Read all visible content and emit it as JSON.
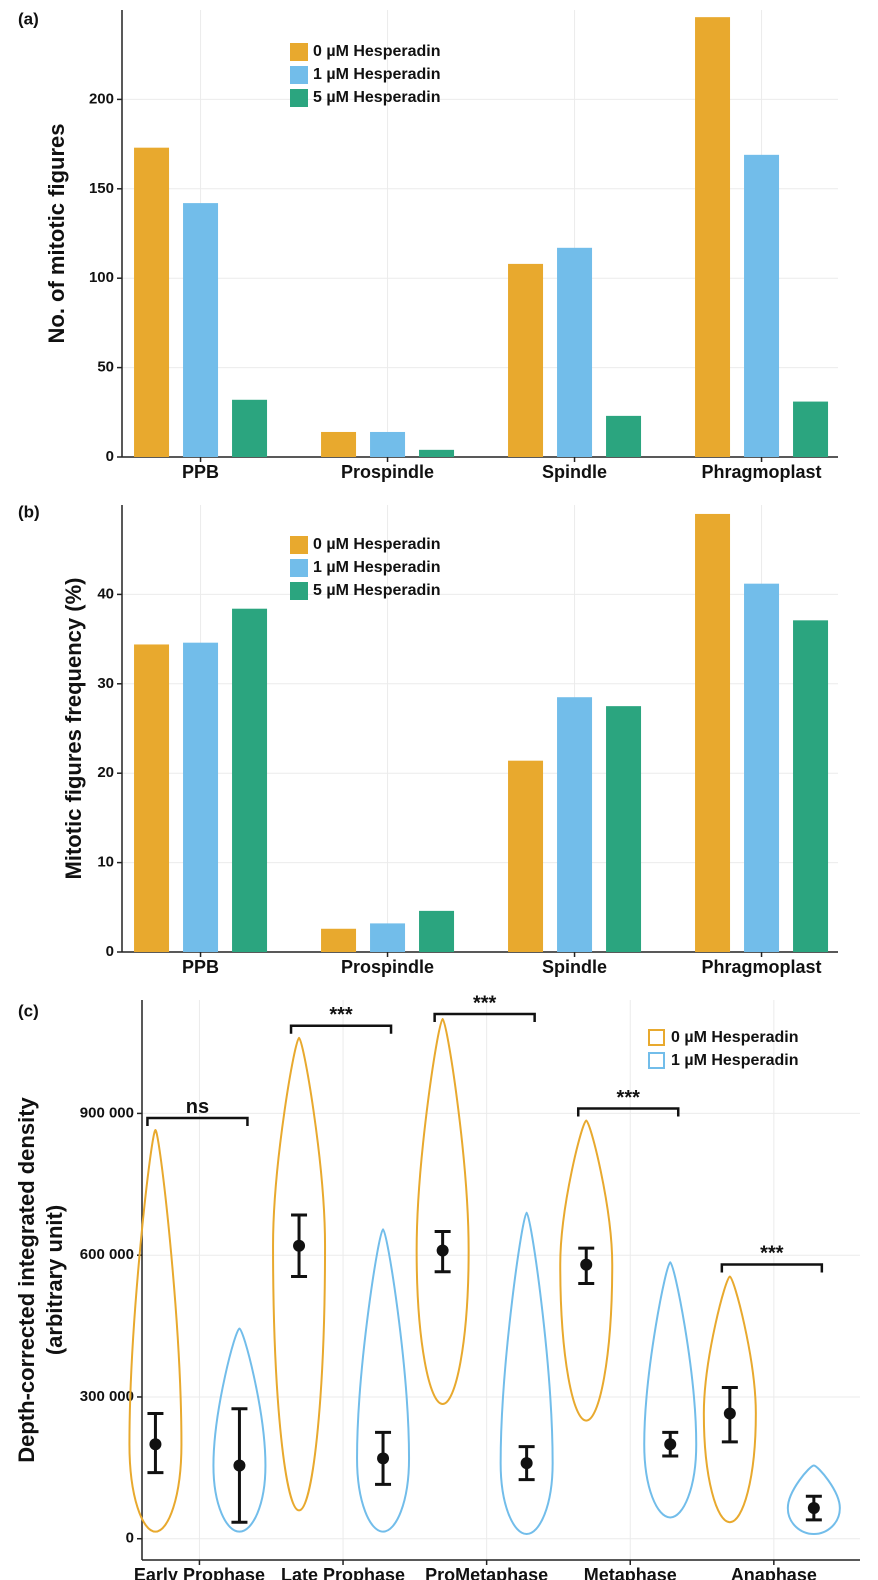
{
  "chart_data": [
    {
      "type": "bar",
      "panel_label": "(a)",
      "ylabel": "No. of mitotic figures",
      "categories": [
        "PPB",
        "Prospindle",
        "Spindle",
        "Phragmoplast"
      ],
      "series": [
        {
          "name": "0 µM Hesperadin",
          "color": "#E8A92E",
          "values": [
            173,
            14,
            108,
            246
          ]
        },
        {
          "name": "1 µM Hesperadin",
          "color": "#72BDEA",
          "values": [
            142,
            14,
            117,
            169
          ]
        },
        {
          "name": "5 µM Hesperadin",
          "color": "#2BA57F",
          "values": [
            32,
            4,
            23,
            31
          ]
        }
      ],
      "ylim": [
        0,
        250
      ],
      "yticks": [
        0,
        50,
        100,
        150,
        200
      ],
      "grid": true,
      "legend": "top-left"
    },
    {
      "type": "bar",
      "panel_label": "(b)",
      "ylabel": "Mitotic figures frequency (%)",
      "categories": [
        "PPB",
        "Prospindle",
        "Spindle",
        "Phragmoplast"
      ],
      "series": [
        {
          "name": "0 µM Hesperadin",
          "color": "#E8A92E",
          "values": [
            34.4,
            2.6,
            21.4,
            49
          ]
        },
        {
          "name": "1 µM Hesperadin",
          "color": "#72BDEA",
          "values": [
            34.6,
            3.2,
            28.5,
            41.2
          ]
        },
        {
          "name": "5 µM Hesperadin",
          "color": "#2BA57F",
          "values": [
            38.4,
            4.6,
            27.5,
            37.1
          ]
        }
      ],
      "ylim": [
        0,
        50
      ],
      "yticks": [
        0,
        10,
        20,
        30,
        40
      ],
      "grid": true,
      "legend": "top-left"
    },
    {
      "type": "violin",
      "panel_label": "(c)",
      "ylabel": "Depth-corrected integrated density",
      "ylabel2": "(arbitrary unit)",
      "categories": [
        "Early Prophase",
        "Late Prophase",
        "ProMetaphase",
        "Metaphase",
        "Anaphase"
      ],
      "series": [
        {
          "name": "0 µM Hesperadin",
          "color": "#E8A92E",
          "mean": [
            200000,
            620000,
            610000,
            580000,
            265000
          ],
          "ci_low": [
            140000,
            555000,
            565000,
            540000,
            205000
          ],
          "ci_high": [
            265000,
            685000,
            650000,
            615000,
            320000
          ],
          "min": [
            15000,
            60000,
            285000,
            250000,
            35000
          ],
          "max": [
            865000,
            1060000,
            1100000,
            885000,
            555000
          ]
        },
        {
          "name": "1 µM Hesperadin",
          "color": "#72BDEA",
          "mean": [
            155000,
            170000,
            160000,
            200000,
            65000
          ],
          "ci_low": [
            35000,
            115000,
            125000,
            175000,
            40000
          ],
          "ci_high": [
            275000,
            225000,
            195000,
            225000,
            90000
          ],
          "min": [
            15000,
            15000,
            10000,
            45000,
            10000
          ],
          "max": [
            445000,
            655000,
            690000,
            585000,
            155000
          ]
        }
      ],
      "significance": [
        "ns",
        "***",
        "***",
        "***",
        "***"
      ],
      "ylim": [
        -45000,
        1140000
      ],
      "yticks": [
        0,
        {
          "value": 300000,
          "label": "300 000"
        },
        {
          "value": 600000,
          "label": "600 000"
        },
        {
          "value": 900000,
          "label": "900 000"
        }
      ],
      "grid": true,
      "legend": "top-right"
    }
  ]
}
